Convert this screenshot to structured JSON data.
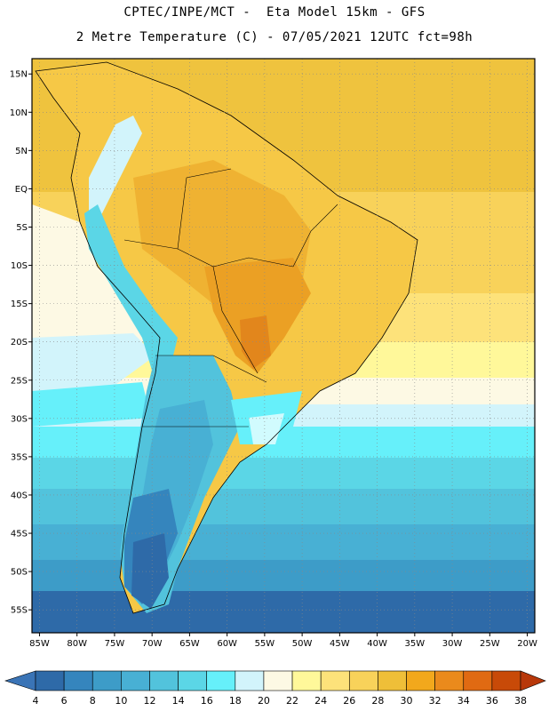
{
  "header": {
    "line1": "CPTEC/INPE/MCT -  Eta Model 15km - GFS",
    "line2": "2 Metre Temperature (C) - 07/05/2021 12UTC fct=98h"
  },
  "map": {
    "lon_range": [
      -86,
      -19
    ],
    "lat_range": [
      -58,
      17
    ],
    "lon_ticks": [
      {
        "v": -85,
        "label": "85W"
      },
      {
        "v": -80,
        "label": "80W"
      },
      {
        "v": -75,
        "label": "75W"
      },
      {
        "v": -70,
        "label": "70W"
      },
      {
        "v": -65,
        "label": "65W"
      },
      {
        "v": -60,
        "label": "60W"
      },
      {
        "v": -55,
        "label": "55W"
      },
      {
        "v": -50,
        "label": "50W"
      },
      {
        "v": -45,
        "label": "45W"
      },
      {
        "v": -40,
        "label": "40W"
      },
      {
        "v": -35,
        "label": "35W"
      },
      {
        "v": -30,
        "label": "30W"
      },
      {
        "v": -25,
        "label": "25W"
      },
      {
        "v": -20,
        "label": "20W"
      }
    ],
    "lat_ticks": [
      {
        "v": 15,
        "label": "15N"
      },
      {
        "v": 10,
        "label": "10N"
      },
      {
        "v": 5,
        "label": "5N"
      },
      {
        "v": 0,
        "label": "EQ"
      },
      {
        "v": -5,
        "label": "5S"
      },
      {
        "v": -10,
        "label": "10S"
      },
      {
        "v": -15,
        "label": "15S"
      },
      {
        "v": -20,
        "label": "20S"
      },
      {
        "v": -25,
        "label": "25S"
      },
      {
        "v": -30,
        "label": "30S"
      },
      {
        "v": -35,
        "label": "35S"
      },
      {
        "v": -40,
        "label": "40S"
      },
      {
        "v": -45,
        "label": "45S"
      },
      {
        "v": -50,
        "label": "50S"
      },
      {
        "v": -55,
        "label": "55S"
      }
    ]
  },
  "colorbar": {
    "labels": [
      "4",
      "6",
      "8",
      "10",
      "12",
      "14",
      "16",
      "18",
      "20",
      "22",
      "24",
      "26",
      "28",
      "30",
      "32",
      "34",
      "36",
      "38"
    ],
    "colors": [
      "#2e6aa8",
      "#3585bd",
      "#3d9cc8",
      "#48b0d4",
      "#52c3dc",
      "#5bd6e6",
      "#66f0fa",
      "#d2f4fb",
      "#fdf9e4",
      "#fff89a",
      "#fde27a",
      "#f8d25a",
      "#efbf38",
      "#f2a81c",
      "#ea8a1c",
      "#e06a12",
      "#c84a08"
    ],
    "low_color": "#3a74b6",
    "high_color": "#b8380a"
  }
}
